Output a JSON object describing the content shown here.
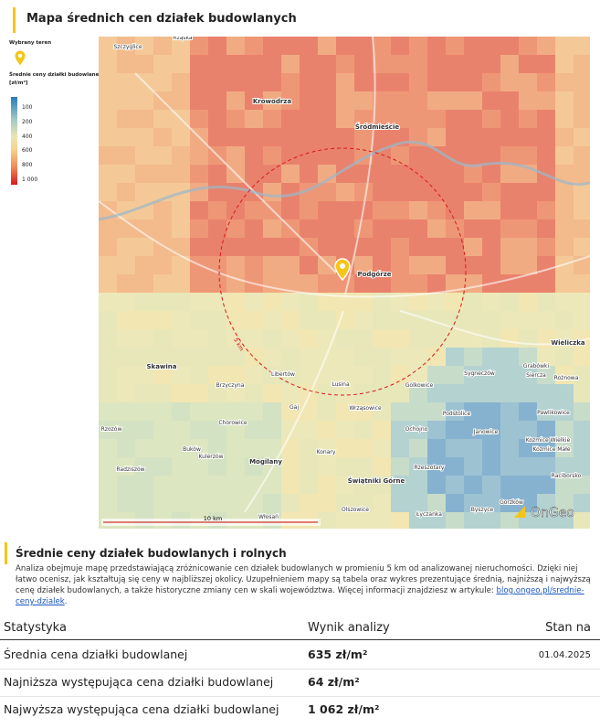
{
  "header": {
    "title": "Mapa średnich cen działek budowlanych"
  },
  "legend": {
    "selected_label": "Wybrany teren",
    "scale_title": "Średnie ceny działki budowlanej",
    "scale_unit": "[zł/m²]",
    "ticks": [
      "100",
      "200",
      "400",
      "600",
      "800",
      "1 000"
    ]
  },
  "map": {
    "places": [
      "Szczyglice",
      "Rząska",
      "Krowodrza",
      "Śródmieście",
      "Podgórze",
      "Wieliczka",
      "Skawina",
      "Libertów",
      "Brzyczyna",
      "Lusina",
      "Golkowice",
      "Sygneczów",
      "Grabówki",
      "Siercza",
      "Rożnowa",
      "Gaj",
      "Wrząsowice",
      "Podstolice",
      "Pawlikowice",
      "Ochojno",
      "Chorowice",
      "Janowice",
      "Kozmice Wielkie",
      "Kozmice Małe",
      "Rzozów",
      "Konary",
      "Buków",
      "Kulerzów",
      "Mogilany",
      "Radziszów",
      "Rzeszotary",
      "Raciborsko",
      "Świątniki Górne",
      "Olszowice",
      "Włosań",
      "Łyczanka",
      "Byszyce",
      "Gorzków"
    ],
    "radius_label": "5 km",
    "scale_label": "10 km",
    "brand": "OnGeo"
  },
  "section": {
    "title": "Średnie ceny działek budowlanych i rolnych",
    "paragraph": "Analiza obejmuje mapę przedstawiającą zróżnicowanie cen działek budowlanych w promieniu 5 km od analizowanej nieruchomości. Dzięki niej łatwo ocenisz, jak kształtują się ceny w najbliższej okolicy. Uzupełnieniem mapy są tabela oraz wykres prezentujące średnią, najniższą i najwyższą cenę działek budowlanych, a także historyczne zmiany cen w skali województwa. Więcej informacji znajdziesz w artykule: ",
    "link": "blog.ongeo.pl/srednie-ceny-dzialek",
    "paragraph_end": "."
  },
  "table": {
    "headers": [
      "Statystyka",
      "Wynik analizy",
      "Stan na"
    ],
    "rows": [
      [
        "Średnia cena działki budowlanej",
        "635 zł/m²",
        "01.04.2025"
      ],
      [
        "Najniższa występująca cena działki budowlanej",
        "64 zł/m²"
      ],
      [
        "Najwyższa występująca cena działki budowlanej",
        "1 062 zł/m²"
      ]
    ]
  }
}
